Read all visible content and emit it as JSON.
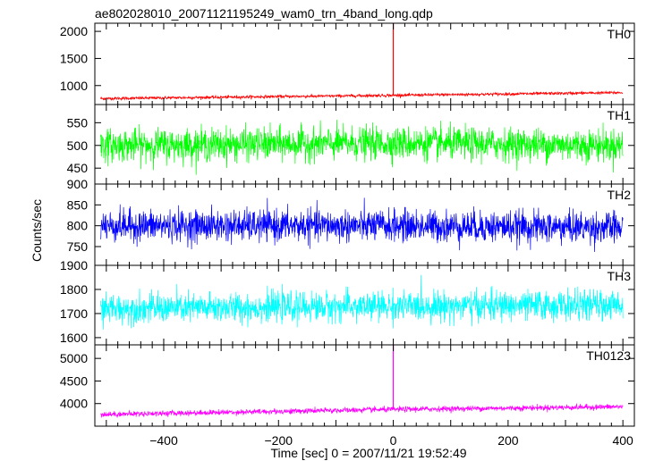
{
  "chart_data": {
    "type": "line",
    "title": "ae802028010_20071121195249_wam0_trn_4band_long.qdp",
    "xlabel": "Time [sec] 0 = 2007/11/21 19:52:49",
    "ylabel": "Counts/sec",
    "xlim": [
      -520,
      420
    ],
    "xticks": [
      -400,
      -200,
      0,
      200,
      400
    ],
    "x_tick_labels": [
      "−400",
      "−200",
      "0",
      "200",
      "400"
    ],
    "grid": false,
    "panels": [
      {
        "name": "TH0",
        "color": "#ff0000",
        "ylim": [
          650,
          2150
        ],
        "yticks": [
          1000,
          1500,
          2000
        ],
        "trend": [
          [
            -510,
            760
          ],
          [
            0,
            820
          ],
          [
            400,
            870
          ]
        ],
        "noise_amplitude": 25,
        "spike": {
          "x": 0,
          "y": 2150
        }
      },
      {
        "name": "TH1",
        "color": "#00ff00",
        "ylim": [
          415,
          590
        ],
        "yticks": [
          450,
          500,
          550
        ],
        "trend": [
          [
            -510,
            500
          ],
          [
            0,
            505
          ],
          [
            400,
            500
          ]
        ],
        "noise_amplitude": 32,
        "spike": null
      },
      {
        "name": "TH2",
        "color": "#0000ff",
        "ylim": [
          705,
          900
        ],
        "yticks": [
          750,
          800,
          850,
          900
        ],
        "trend": [
          [
            -510,
            800
          ],
          [
            0,
            800
          ],
          [
            400,
            795
          ]
        ],
        "noise_amplitude": 34,
        "spike": null
      },
      {
        "name": "TH3",
        "color": "#00ffff",
        "ylim": [
          1570,
          1900
        ],
        "yticks": [
          1600,
          1700,
          1800,
          1900
        ],
        "trend": [
          [
            -510,
            1720
          ],
          [
            0,
            1730
          ],
          [
            400,
            1735
          ]
        ],
        "noise_amplitude": 55,
        "spike": null
      },
      {
        "name": "TH0123",
        "color": "#ff00ff",
        "ylim": [
          3500,
          5300
        ],
        "yticks": [
          4000,
          4500,
          5000
        ],
        "trend": [
          [
            -510,
            3760
          ],
          [
            0,
            3870
          ],
          [
            400,
            3930
          ]
        ],
        "noise_amplitude": 55,
        "spike": {
          "x": 0,
          "y": 5300
        }
      }
    ]
  }
}
